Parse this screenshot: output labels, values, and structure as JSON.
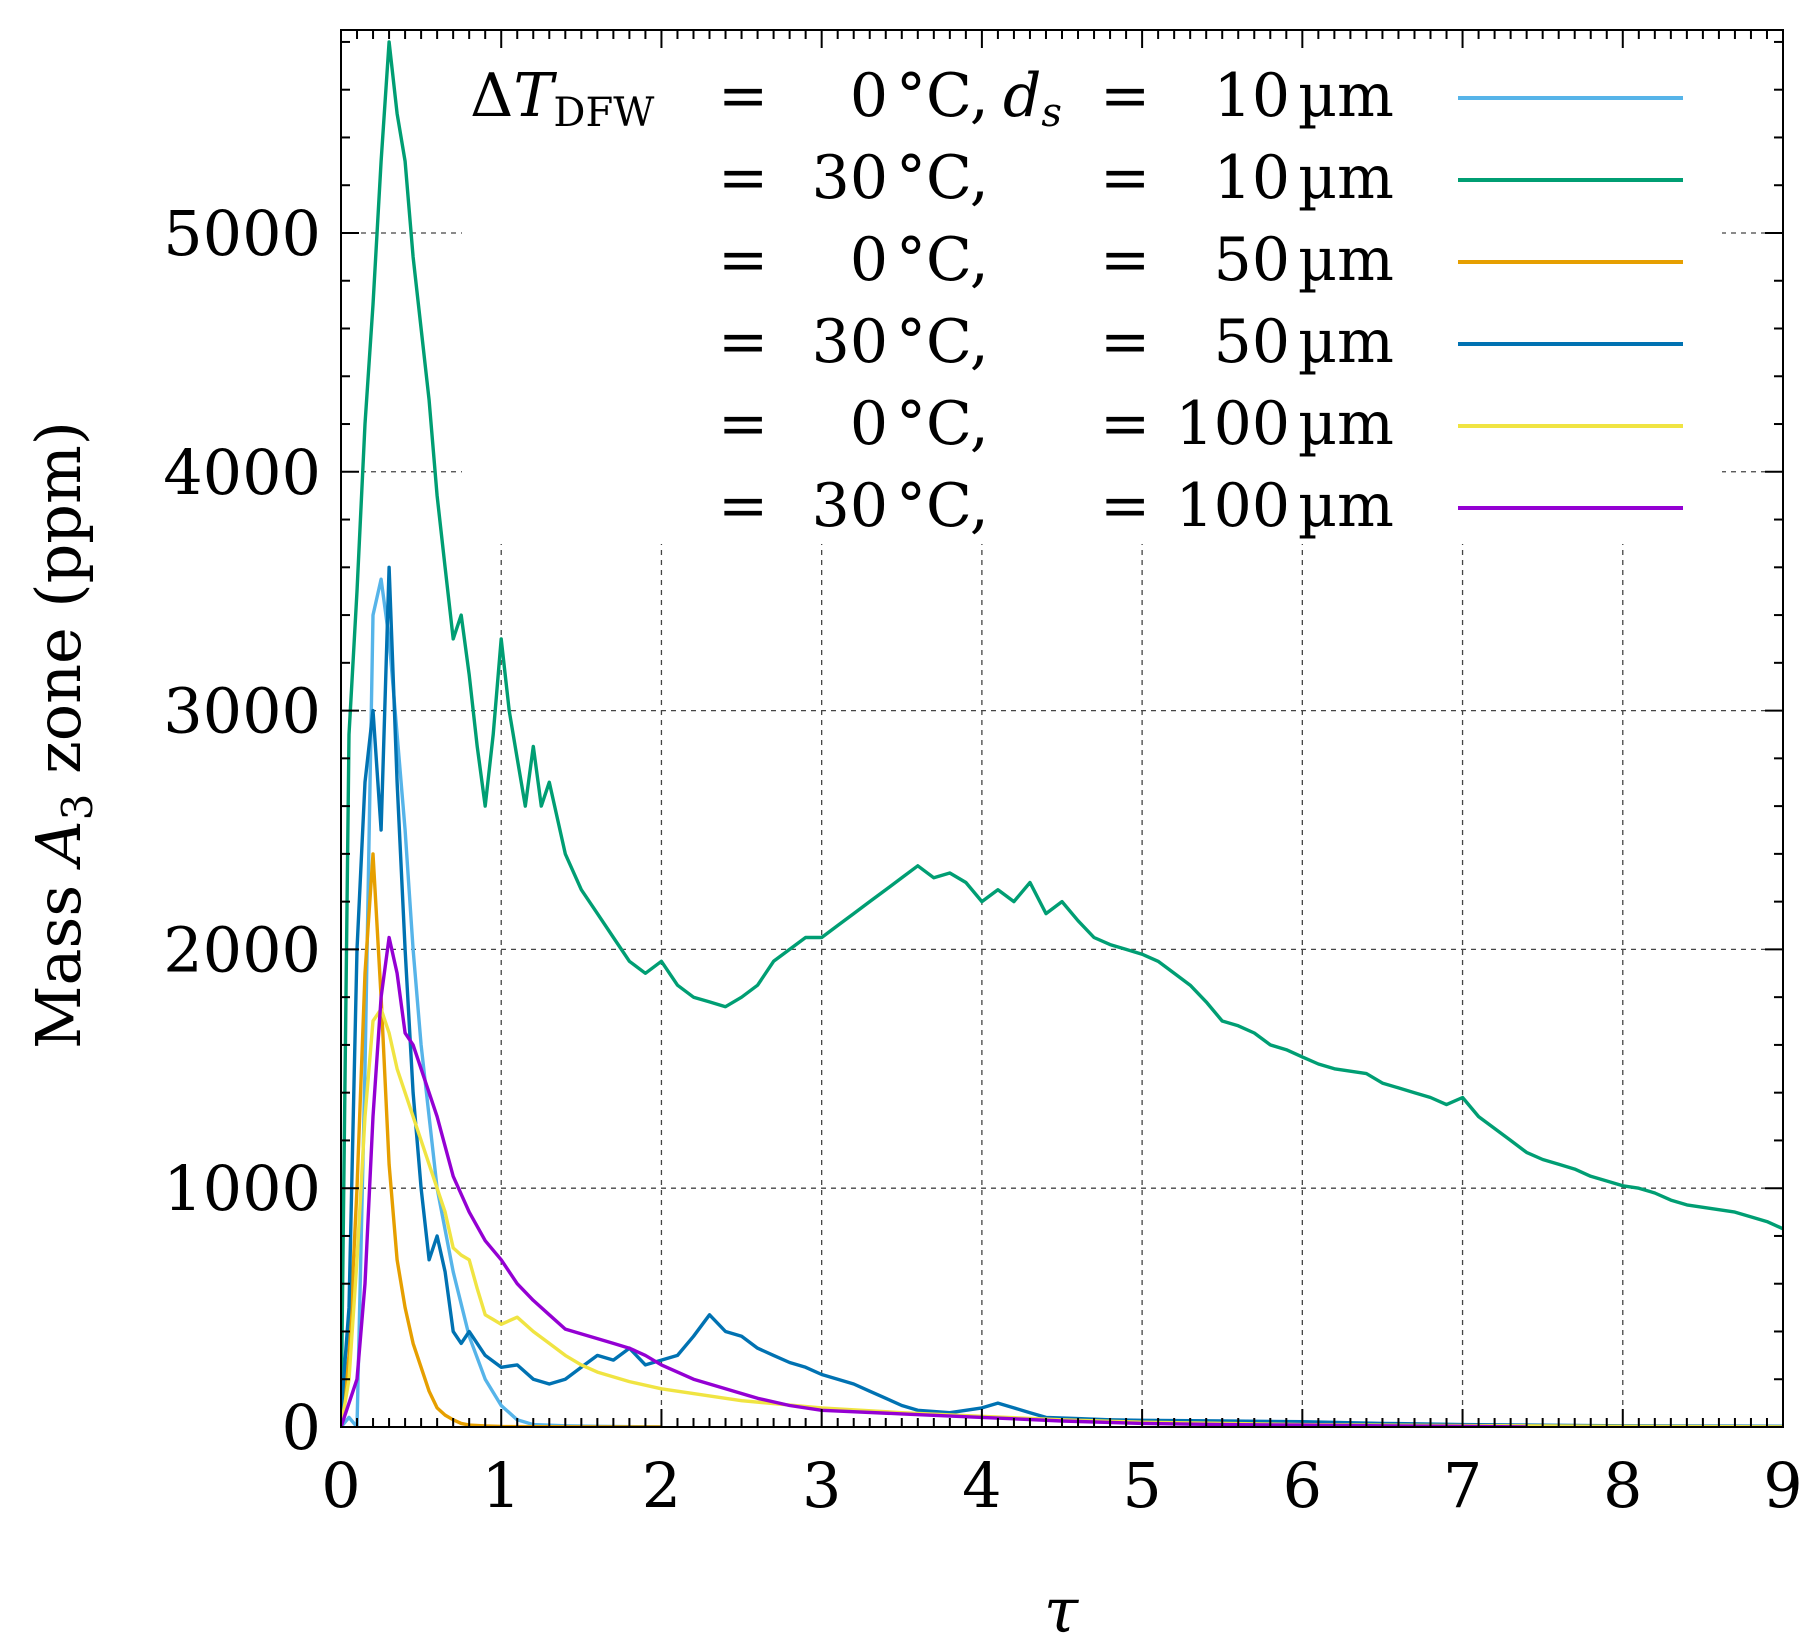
{
  "chart_data": {
    "type": "line",
    "title": "",
    "xlabel": "τ",
    "ylabel": "Mass A3 zone (ppm)",
    "ylabel_parts": {
      "main": "Mass ",
      "italic": "A",
      "sub": "3",
      "rest": " zone (ppm)"
    },
    "xlim": [
      0,
      9
    ],
    "ylim": [
      0,
      5850
    ],
    "xticks": [
      0,
      1,
      2,
      3,
      4,
      5,
      6,
      7,
      8,
      9
    ],
    "xtick_labels": [
      "0",
      "1",
      "2",
      "3",
      "4",
      "5",
      "6",
      "7",
      "8",
      "9"
    ],
    "yticks": [
      0,
      1000,
      2000,
      3000,
      4000,
      5000
    ],
    "ytick_labels": [
      "0",
      "1000",
      "2000",
      "3000",
      "4000",
      "5000"
    ],
    "grid": true,
    "legend_position": "top-right",
    "legend_header": {
      "delta": "Δ",
      "T": "T",
      "sub": "DFW",
      "ds_d": "d",
      "ds_s": "s"
    },
    "series": [
      {
        "name": "ΔT_DFW = 0 °C, d_s = 10 µm",
        "temp": "0",
        "size": "10",
        "color": "#56b4e9",
        "x": [
          0,
          0.05,
          0.1,
          0.15,
          0.2,
          0.25,
          0.3,
          0.35,
          0.4,
          0.45,
          0.5,
          0.6,
          0.7,
          0.8,
          0.9,
          1.0,
          1.1,
          1.2,
          1.4,
          1.6,
          2.0
        ],
        "y": [
          0,
          40,
          0,
          1500,
          3400,
          3550,
          3300,
          2900,
          2500,
          2000,
          1600,
          1000,
          650,
          380,
          200,
          90,
          30,
          10,
          5,
          3,
          0
        ]
      },
      {
        "name": "ΔT_DFW = 30 °C, d_s = 10 µm",
        "temp": "30",
        "size": "10",
        "color": "#009e73",
        "x": [
          0,
          0.05,
          0.1,
          0.15,
          0.2,
          0.25,
          0.3,
          0.35,
          0.4,
          0.45,
          0.5,
          0.55,
          0.6,
          0.65,
          0.7,
          0.75,
          0.8,
          0.85,
          0.9,
          0.95,
          1.0,
          1.05,
          1.1,
          1.15,
          1.2,
          1.25,
          1.3,
          1.4,
          1.5,
          1.6,
          1.7,
          1.8,
          1.9,
          2.0,
          2.1,
          2.2,
          2.3,
          2.4,
          2.5,
          2.6,
          2.7,
          2.8,
          2.9,
          3.0,
          3.1,
          3.2,
          3.3,
          3.4,
          3.5,
          3.6,
          3.7,
          3.8,
          3.9,
          4.0,
          4.1,
          4.2,
          4.3,
          4.4,
          4.5,
          4.6,
          4.7,
          4.8,
          4.9,
          5.0,
          5.1,
          5.2,
          5.3,
          5.4,
          5.5,
          5.6,
          5.7,
          5.8,
          5.9,
          6.0,
          6.1,
          6.2,
          6.3,
          6.4,
          6.5,
          6.6,
          6.7,
          6.8,
          6.9,
          7.0,
          7.1,
          7.2,
          7.3,
          7.4,
          7.5,
          7.6,
          7.7,
          7.8,
          7.9,
          8.0,
          8.1,
          8.2,
          8.3,
          8.4,
          8.5,
          8.6,
          8.7,
          8.8,
          8.9,
          9.0
        ],
        "y": [
          0,
          2900,
          3500,
          4200,
          4700,
          5300,
          5800,
          5500,
          5300,
          4900,
          4600,
          4300,
          3900,
          3600,
          3300,
          3400,
          3150,
          2850,
          2600,
          2900,
          3300,
          3000,
          2800,
          2600,
          2850,
          2600,
          2700,
          2400,
          2250,
          2150,
          2050,
          1950,
          1900,
          1950,
          1850,
          1800,
          1780,
          1760,
          1800,
          1850,
          1950,
          2000,
          2050,
          2050,
          2100,
          2150,
          2200,
          2250,
          2300,
          2350,
          2300,
          2320,
          2280,
          2200,
          2250,
          2200,
          2280,
          2150,
          2200,
          2120,
          2050,
          2020,
          2000,
          1980,
          1950,
          1900,
          1850,
          1780,
          1700,
          1680,
          1650,
          1600,
          1580,
          1550,
          1520,
          1500,
          1490,
          1480,
          1440,
          1420,
          1400,
          1380,
          1350,
          1380,
          1300,
          1250,
          1200,
          1150,
          1120,
          1100,
          1080,
          1050,
          1030,
          1010,
          1000,
          980,
          950,
          930,
          920,
          910,
          900,
          880,
          860,
          830
        ]
      },
      {
        "name": "ΔT_DFW = 0 °C, d_s = 50 µm",
        "temp": "0",
        "size": "50",
        "color": "#e69f00",
        "x": [
          0,
          0.05,
          0.1,
          0.15,
          0.2,
          0.25,
          0.3,
          0.35,
          0.4,
          0.45,
          0.5,
          0.55,
          0.6,
          0.65,
          0.7,
          0.75,
          0.8,
          0.9,
          1.0,
          1.5,
          2.0
        ],
        "y": [
          0,
          300,
          1000,
          1900,
          2400,
          1800,
          1100,
          700,
          500,
          350,
          250,
          150,
          80,
          50,
          30,
          15,
          8,
          4,
          2,
          1,
          0
        ]
      },
      {
        "name": "ΔT_DFW = 30 °C, d_s = 50 µm",
        "temp": "30",
        "size": "50",
        "color": "#0072b2",
        "x": [
          0,
          0.05,
          0.1,
          0.15,
          0.2,
          0.25,
          0.3,
          0.35,
          0.4,
          0.45,
          0.5,
          0.55,
          0.6,
          0.65,
          0.7,
          0.75,
          0.8,
          0.9,
          1.0,
          1.1,
          1.2,
          1.3,
          1.4,
          1.5,
          1.6,
          1.7,
          1.8,
          1.9,
          2.0,
          2.1,
          2.2,
          2.3,
          2.4,
          2.5,
          2.6,
          2.7,
          2.8,
          2.9,
          3.0,
          3.1,
          3.2,
          3.3,
          3.4,
          3.5,
          3.6,
          3.8,
          4.0,
          4.1,
          4.2,
          4.3,
          4.4,
          4.6,
          4.8,
          5.0,
          5.5,
          6.0,
          6.5,
          7.0,
          8.0,
          9.0
        ],
        "y": [
          50,
          500,
          2000,
          2700,
          3000,
          2500,
          3600,
          2700,
          2000,
          1400,
          1000,
          700,
          800,
          650,
          400,
          350,
          400,
          300,
          250,
          260,
          200,
          180,
          200,
          250,
          300,
          280,
          330,
          260,
          280,
          300,
          380,
          470,
          400,
          380,
          330,
          300,
          270,
          250,
          220,
          200,
          180,
          150,
          120,
          90,
          70,
          60,
          80,
          100,
          80,
          60,
          40,
          35,
          30,
          28,
          25,
          22,
          15,
          10,
          5,
          3
        ]
      },
      {
        "name": "ΔT_DFW = 0 °C, d_s = 100 µm",
        "temp": "0",
        "size": "100",
        "color": "#f0e442",
        "x": [
          0,
          0.05,
          0.1,
          0.15,
          0.2,
          0.25,
          0.3,
          0.35,
          0.4,
          0.45,
          0.5,
          0.55,
          0.6,
          0.65,
          0.7,
          0.75,
          0.8,
          0.85,
          0.9,
          0.95,
          1.0,
          1.1,
          1.2,
          1.3,
          1.4,
          1.5,
          1.6,
          1.8,
          2.0,
          2.2,
          2.5,
          3.0,
          3.5,
          4.0,
          4.5,
          5.0,
          6.0,
          7.0,
          8.0,
          9.0
        ],
        "y": [
          0,
          200,
          700,
          1300,
          1700,
          1750,
          1650,
          1500,
          1400,
          1300,
          1200,
          1100,
          1000,
          900,
          750,
          720,
          700,
          580,
          470,
          450,
          430,
          460,
          400,
          350,
          300,
          260,
          230,
          190,
          160,
          140,
          110,
          80,
          60,
          45,
          30,
          20,
          10,
          6,
          3,
          1
        ]
      },
      {
        "name": "ΔT_DFW = 30 °C, d_s = 100 µm",
        "temp": "30",
        "size": "100",
        "color": "#9400d3",
        "x": [
          0,
          0.1,
          0.15,
          0.2,
          0.25,
          0.3,
          0.35,
          0.4,
          0.45,
          0.5,
          0.6,
          0.7,
          0.8,
          0.9,
          1.0,
          1.1,
          1.2,
          1.3,
          1.4,
          1.5,
          1.6,
          1.7,
          1.8,
          1.9,
          2.0,
          2.2,
          2.4,
          2.6,
          2.8,
          3.0,
          3.5,
          4.0,
          4.5,
          5.0,
          5.5,
          6.0,
          6.5,
          7.0,
          7.4
        ],
        "y": [
          0,
          200,
          600,
          1300,
          1800,
          2050,
          1900,
          1650,
          1600,
          1500,
          1300,
          1050,
          900,
          780,
          700,
          600,
          530,
          470,
          410,
          390,
          370,
          350,
          330,
          300,
          260,
          200,
          160,
          120,
          90,
          70,
          55,
          40,
          25,
          15,
          10,
          8,
          5,
          3,
          0
        ]
      }
    ]
  }
}
